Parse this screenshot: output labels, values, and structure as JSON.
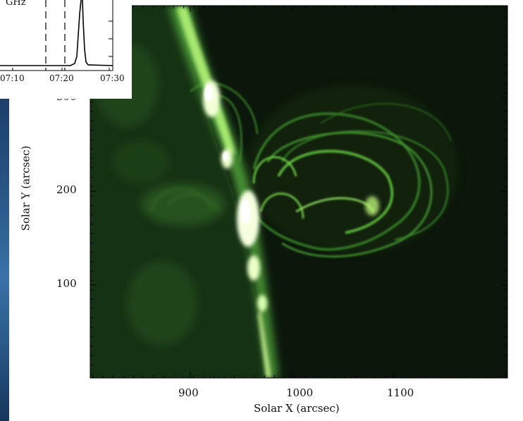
{
  "main_plot": {
    "xlabel": "Solar X (arcsec)",
    "ylabel": "Solar Y (arcsec)",
    "x_ticks": [
      "900",
      "1000",
      "1100"
    ],
    "y_ticks": [
      "100",
      "200",
      "300"
    ],
    "colors": {
      "background": "#0b1a0b",
      "emission": "#3fae2a",
      "bright": "#f4ffd8"
    }
  },
  "inset": {
    "label": "GHz",
    "x_ticks": [
      "07:10",
      "07:20",
      "07:30"
    ]
  }
}
